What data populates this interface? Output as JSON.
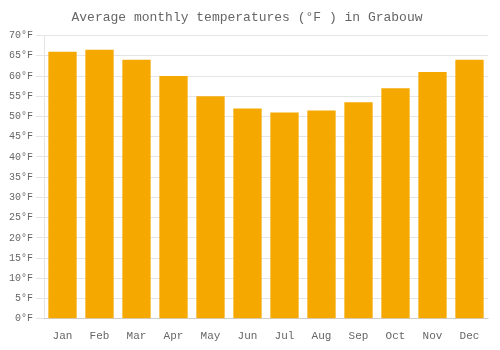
{
  "chart_data": {
    "type": "bar",
    "title": "Average monthly temperatures (°F ) in Grabouw",
    "categories": [
      "Jan",
      "Feb",
      "Mar",
      "Apr",
      "May",
      "Jun",
      "Jul",
      "Aug",
      "Sep",
      "Oct",
      "Nov",
      "Dec"
    ],
    "values": [
      66,
      66.5,
      64,
      60,
      55,
      52,
      51,
      51.5,
      53.5,
      57,
      61,
      64
    ],
    "color": "#F5A800",
    "ylim": [
      0,
      70
    ],
    "yticks": [
      {
        "value": 0,
        "label": "0°F"
      },
      {
        "value": 5,
        "label": "5°F"
      },
      {
        "value": 10,
        "label": "10°F"
      },
      {
        "value": 15,
        "label": "15°F"
      },
      {
        "value": 20,
        "label": "20°F"
      },
      {
        "value": 25,
        "label": "25°F"
      },
      {
        "value": 30,
        "label": "30°F"
      },
      {
        "value": 35,
        "label": "35°F"
      },
      {
        "value": 40,
        "label": "40°F"
      },
      {
        "value": 45,
        "label": "45°F"
      },
      {
        "value": 50,
        "label": "50°F"
      },
      {
        "value": 55,
        "label": "55°F"
      },
      {
        "value": 60,
        "label": "60°F"
      },
      {
        "value": 65,
        "label": "65°F"
      },
      {
        "value": 70,
        "label": "70°F"
      }
    ],
    "grid": true
  }
}
